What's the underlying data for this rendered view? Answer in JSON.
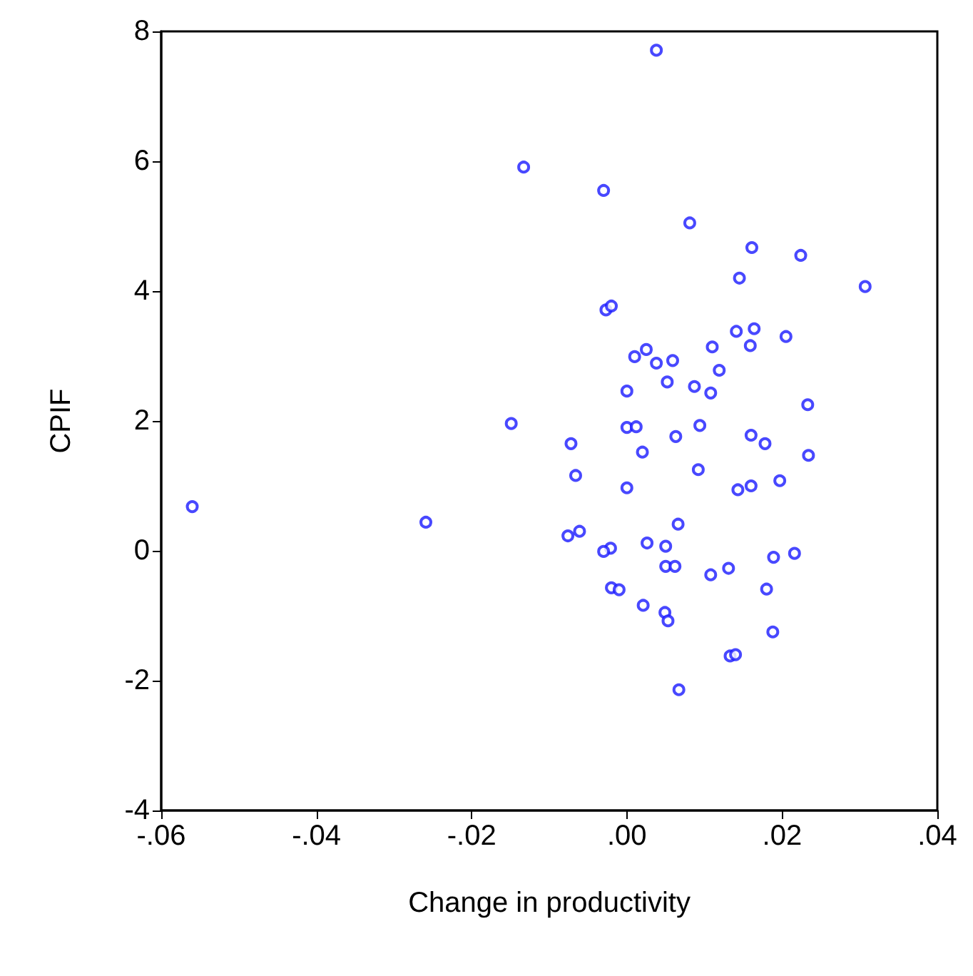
{
  "chart_data": {
    "type": "scatter",
    "xlabel": "Change in productivity",
    "ylabel": "CPIF",
    "marker": "circle",
    "grid": false,
    "xlim": [
      -0.06,
      0.04
    ],
    "xticks": [
      {
        "value": -0.06,
        "label": "-.06"
      },
      {
        "value": -0.04,
        "label": "-.04"
      },
      {
        "value": -0.02,
        "label": "-.02"
      },
      {
        "value": 0,
        "label": ".00"
      },
      {
        "value": 0.02,
        "label": ".02"
      },
      {
        "value": 0.04,
        "label": ".04"
      }
    ],
    "ylim": [
      -4,
      8
    ],
    "yticks": [
      -4,
      -2,
      0,
      2,
      4,
      6,
      8
    ],
    "series": [
      {
        "color": "#1a1aff",
        "x": [
          -0.056,
          -0.0259,
          -0.0133,
          0.0038,
          -0.003,
          0.0081,
          0.0161,
          0.0224,
          0.0145,
          0.0307,
          -0.0027,
          -0.002,
          0.0141,
          0.0164,
          0.0205,
          0.011,
          0.0159,
          0.001,
          0.0025,
          0.0038,
          0.0059,
          0.0119,
          0.0052,
          0.0087,
          0.0108,
          0.0,
          0.0233,
          -0.0149,
          -0.0072,
          0.0,
          0.0012,
          0.0094,
          0.0063,
          0.016,
          0.0178,
          0.002,
          0.0234,
          -0.0066,
          0.0092,
          0.0197,
          0.016,
          0.0143,
          0.0,
          0.0066,
          -0.0061,
          -0.0076,
          0.0026,
          -0.0021,
          -0.003,
          0.005,
          0.0216,
          0.0189,
          0.005,
          0.0062,
          0.0131,
          0.0108,
          -0.002,
          -0.001,
          0.018,
          0.0021,
          0.0049,
          0.0053,
          0.0188,
          0.0133,
          0.014,
          0.0067
        ],
        "values": [
          0.68,
          0.44,
          5.91,
          7.71,
          5.55,
          5.05,
          4.67,
          4.55,
          4.2,
          4.07,
          3.71,
          3.77,
          3.38,
          3.42,
          3.3,
          3.14,
          3.16,
          2.99,
          3.1,
          2.89,
          2.93,
          2.78,
          2.6,
          2.53,
          2.43,
          2.46,
          2.25,
          1.96,
          1.65,
          1.9,
          1.91,
          1.93,
          1.76,
          1.78,
          1.65,
          1.52,
          1.47,
          1.16,
          1.25,
          1.08,
          1.0,
          0.94,
          0.97,
          0.41,
          0.3,
          0.23,
          0.12,
          0.04,
          -0.01,
          0.07,
          -0.04,
          -0.1,
          -0.24,
          -0.24,
          -0.27,
          -0.37,
          -0.57,
          -0.6,
          -0.59,
          -0.84,
          -0.95,
          -1.08,
          -1.25,
          -1.62,
          -1.6,
          -2.14
        ]
      }
    ]
  }
}
